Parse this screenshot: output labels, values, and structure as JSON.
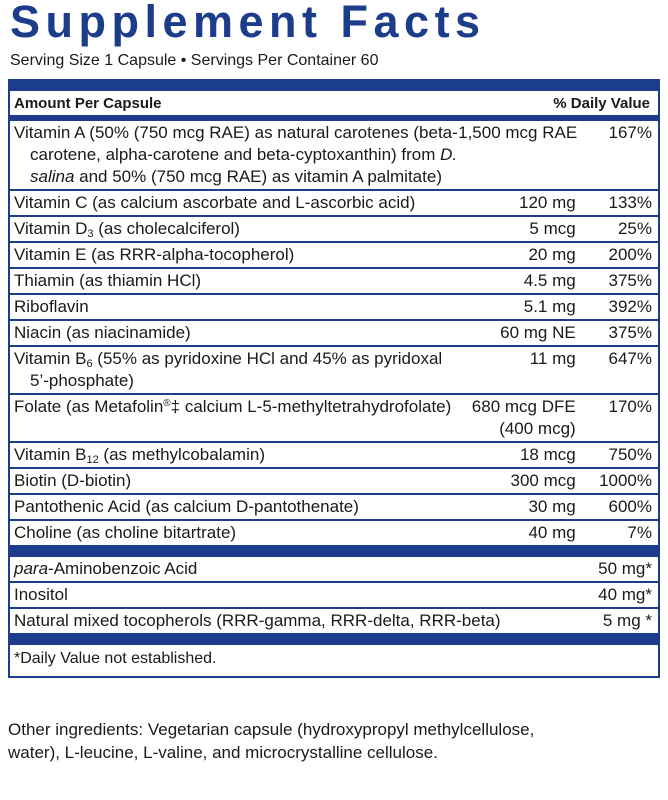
{
  "title": "Supplement Facts",
  "serving": "Serving Size 1 Capsule • Servings Per Container 60",
  "header": {
    "amount": "Amount Per Capsule",
    "dv": "% Daily Value"
  },
  "rows": [
    {
      "name": [
        "Vitamin A (50% (750 mcg RAE) as natural carotenes (beta-carotene, alpha-carotene and beta-cyptoxanthin) from ",
        "D. salina",
        " and 50% (750 mcg RAE) as vitamin A palmitate)"
      ],
      "amount": "1,500 mcg RAE",
      "dv": "167%"
    },
    {
      "name": [
        "Vitamin C (as calcium ascorbate and L-ascorbic acid)"
      ],
      "amount": "120 mg",
      "dv": "133%"
    },
    {
      "name": [
        "Vitamin D",
        "3",
        " (as cholecalciferol)"
      ],
      "amount": "5 mcg",
      "dv": "25%"
    },
    {
      "name": [
        "Vitamin E (as RRR-alpha-tocopherol)"
      ],
      "amount": "20 mg",
      "dv": "200%"
    },
    {
      "name": [
        "Thiamin (as thiamin HCl)"
      ],
      "amount": "4.5 mg",
      "dv": "375%"
    },
    {
      "name": [
        "Riboflavin"
      ],
      "amount": "5.1 mg",
      "dv": "392%"
    },
    {
      "name": [
        "Niacin (as niacinamide)"
      ],
      "amount": "60 mg NE",
      "dv": "375%"
    },
    {
      "name": [
        "Vitamin B",
        "6",
        " (55% as pyridoxine HCl and 45% as pyridoxal 5’-phosphate)"
      ],
      "amount": "11 mg",
      "dv": "647%"
    },
    {
      "name": [
        "Folate (as Metafolin",
        "®",
        "‡ calcium L-5-methyltetrahydrofolate)"
      ],
      "amount": "680 mcg DFE",
      "amount_note": "(400 mcg)",
      "dv": "170%"
    },
    {
      "name": [
        "Vitamin B",
        "12",
        " (as methylcobalamin)"
      ],
      "amount": "18 mcg",
      "dv": "750%"
    },
    {
      "name": [
        "Biotin (D-biotin)"
      ],
      "amount": "300 mcg",
      "dv": "1000%"
    },
    {
      "name": [
        "Pantothenic Acid (as calcium D-pantothenate)"
      ],
      "amount": "30 mg",
      "dv": "600%"
    },
    {
      "name": [
        "Choline (as choline bitartrate)"
      ],
      "amount": "40 mg",
      "dv": "7%"
    }
  ],
  "other_rows": [
    {
      "name": [
        "para",
        "-Aminobenzoic Acid"
      ],
      "amount": "50 mg*"
    },
    {
      "name": [
        "Inositol"
      ],
      "amount": "40 mg*"
    },
    {
      "name": [
        "Natural mixed tocopherols (RRR-gamma, RRR-delta, RRR-beta)"
      ],
      "amount": "5 mg *"
    }
  ],
  "footnote": "*Daily Value not established.",
  "other_ingredients": "Other ingredients: Vegetarian capsule (hydroxypropyl methylcellulose, water), L-leucine, L-valine, and microcrystalline cellulose."
}
